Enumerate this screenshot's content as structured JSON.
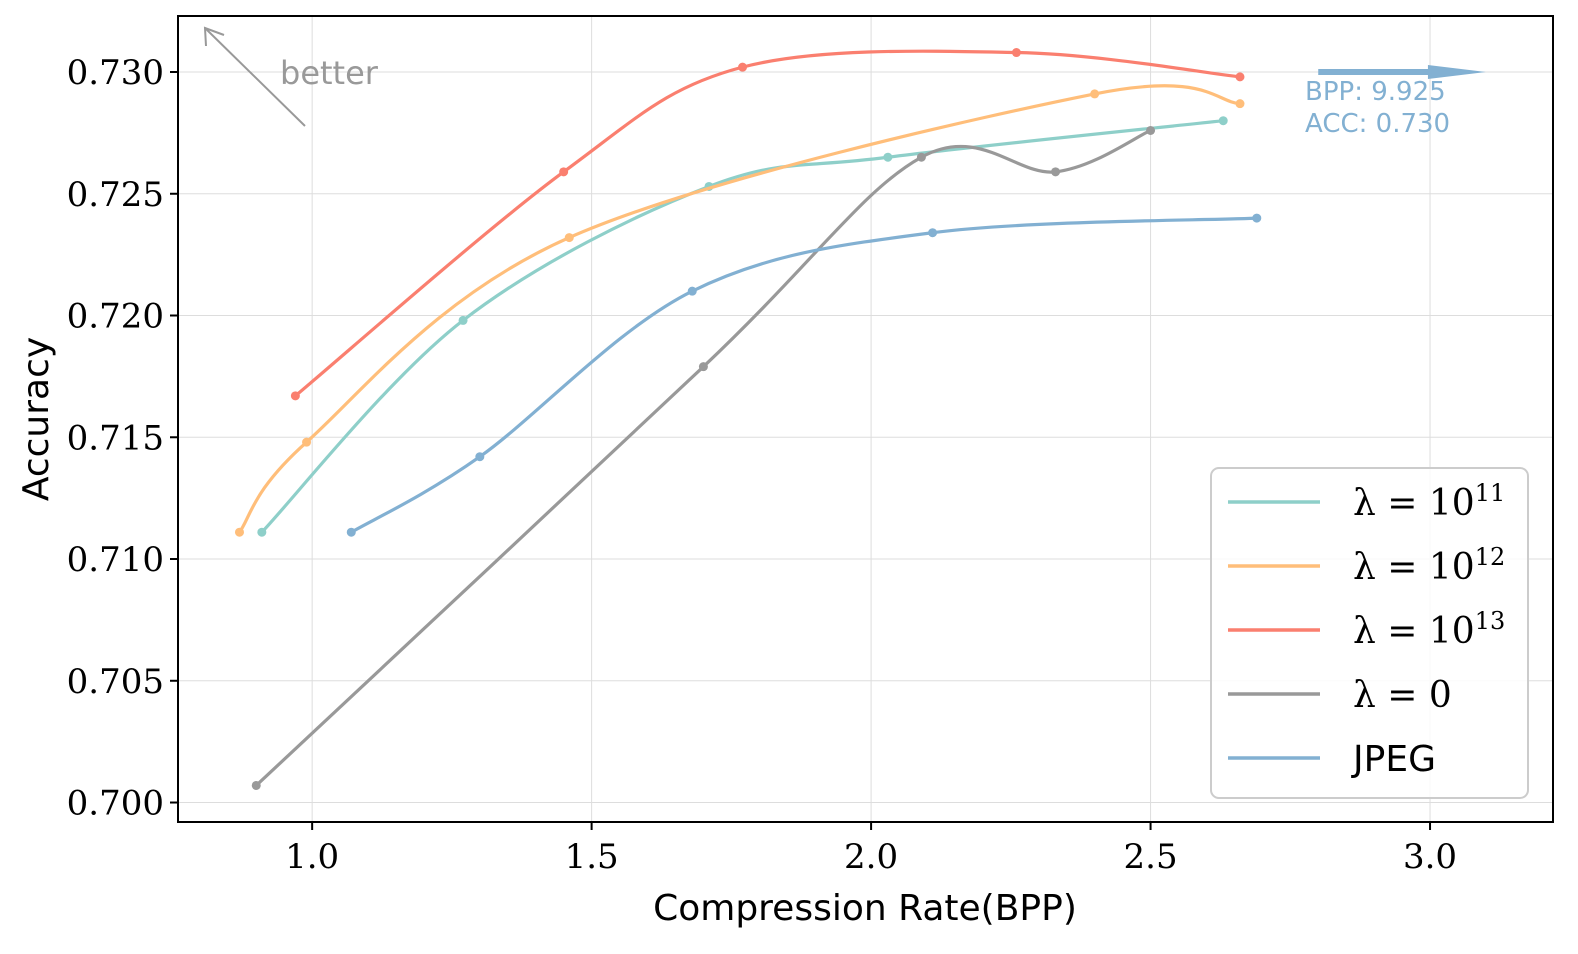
{
  "chart_data": {
    "type": "line",
    "title": "",
    "xlabel": "Compression Rate(BPP)",
    "ylabel": "Accuracy",
    "xlim": [
      0.76,
      3.22
    ],
    "ylim": [
      0.6992,
      0.7323
    ],
    "xticks": [
      1.0,
      1.5,
      2.0,
      2.5,
      3.0
    ],
    "xtick_labels": [
      "1.0",
      "1.5",
      "2.0",
      "2.5",
      "3.0"
    ],
    "yticks": [
      0.7,
      0.705,
      0.71,
      0.715,
      0.72,
      0.725,
      0.73
    ],
    "ytick_labels": [
      "0.700",
      "0.705",
      "0.710",
      "0.715",
      "0.720",
      "0.725",
      "0.730"
    ],
    "grid": true,
    "legend_position": "lower-right",
    "series": [
      {
        "name": "λ = 10^11",
        "label_main": "λ = 10",
        "label_sup": "11",
        "color": "#8ecfc9",
        "x": [
          0.91,
          1.27,
          1.71,
          2.03,
          2.63
        ],
        "y": [
          0.7111,
          0.7198,
          0.7253,
          0.7265,
          0.728
        ]
      },
      {
        "name": "λ = 10^12",
        "label_main": "λ = 10",
        "label_sup": "12",
        "color": "#ffbe7a",
        "x": [
          0.87,
          0.99,
          1.46,
          2.4,
          2.66
        ],
        "y": [
          0.7111,
          0.7148,
          0.7232,
          0.7291,
          0.7287
        ]
      },
      {
        "name": "λ = 10^13",
        "label_main": "λ = 10",
        "label_sup": "13",
        "color": "#fa7f6f",
        "x": [
          0.97,
          1.45,
          1.77,
          2.26,
          2.66
        ],
        "y": [
          0.7167,
          0.7259,
          0.7302,
          0.7308,
          0.7298
        ]
      },
      {
        "name": "λ = 0",
        "label_main": "λ = 0",
        "label_sup": "",
        "color": "#999999",
        "x": [
          0.9,
          1.7,
          2.09,
          2.33,
          2.5
        ],
        "y": [
          0.7007,
          0.7179,
          0.7265,
          0.7259,
          0.7276
        ]
      },
      {
        "name": "JPEG",
        "label_main": "JPEG",
        "label_sup": "",
        "color": "#82b0d2",
        "x": [
          1.07,
          1.3,
          1.68,
          2.11,
          2.69
        ],
        "y": [
          0.7111,
          0.7142,
          0.721,
          0.7234,
          0.724
        ]
      }
    ],
    "annotations": {
      "better": "better",
      "offscreen_line1": "BPP: 9.925",
      "offscreen_line2": "ACC: 0.730",
      "offscreen_color": "#82b0d2",
      "offscreen_arrow_from": [
        2.8,
        0.73
      ],
      "offscreen_arrow_to": [
        3.1,
        0.73
      ]
    }
  }
}
